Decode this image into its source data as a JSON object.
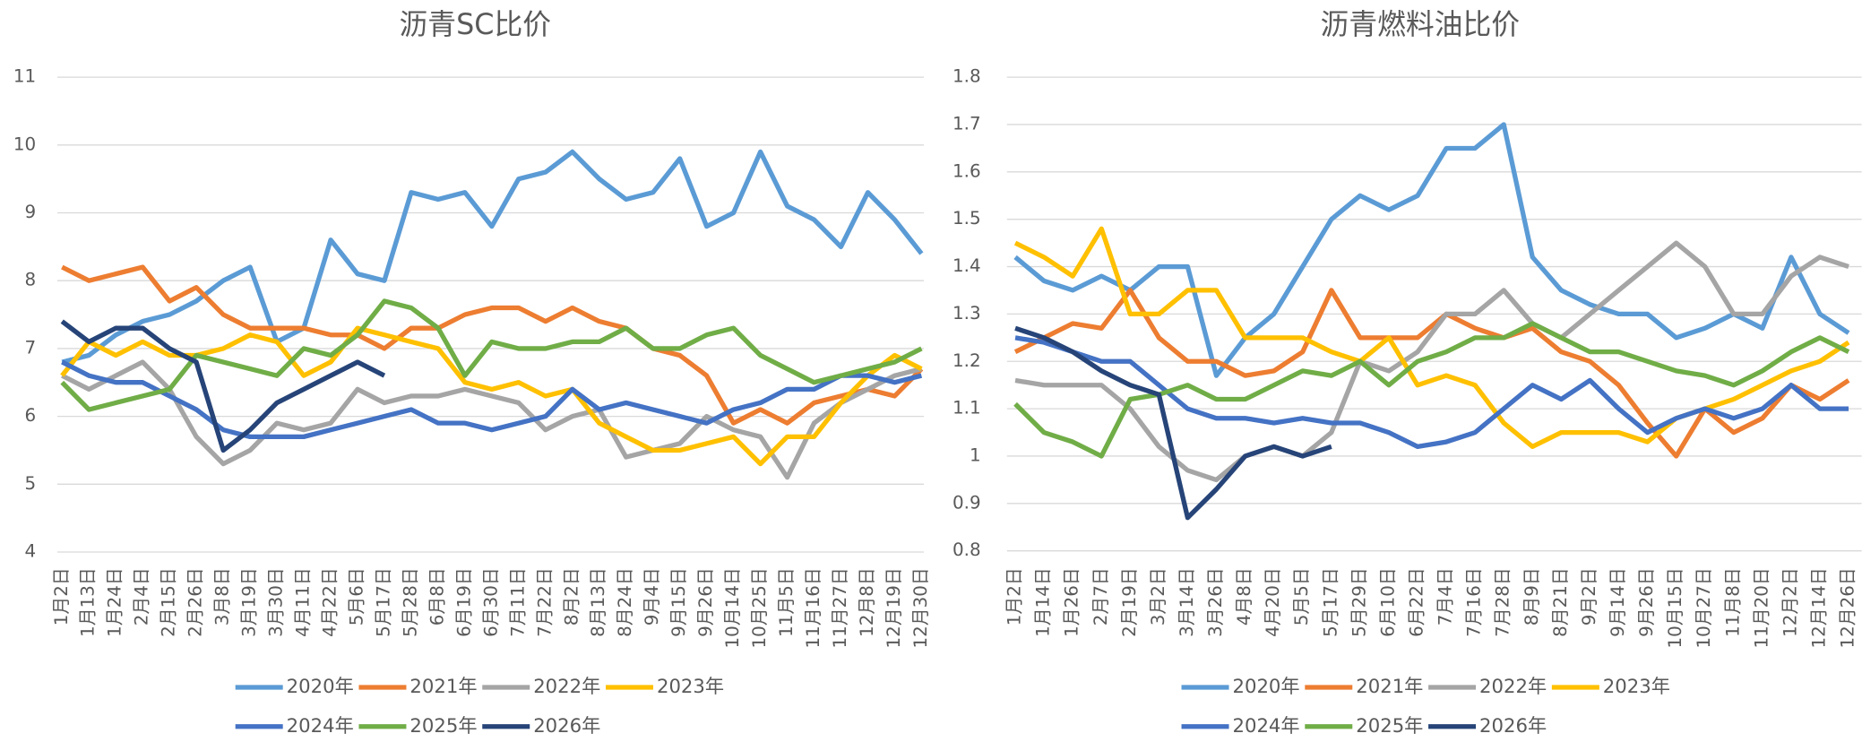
{
  "chart_data": [
    {
      "type": "line",
      "title": "沥青SC比价",
      "categories": [
        "1月2日",
        "1月13日",
        "1月24日",
        "2月4日",
        "2月15日",
        "2月26日",
        "3月8日",
        "3月19日",
        "3月30日",
        "4月11日",
        "4月22日",
        "5月6日",
        "5月17日",
        "5月28日",
        "6月8日",
        "6月19日",
        "6月30日",
        "7月11日",
        "7月22日",
        "8月2日",
        "8月13日",
        "8月24日",
        "9月4日",
        "9月15日",
        "9月26日",
        "10月14日",
        "10月25日",
        "11月5日",
        "11月16日",
        "11月27日",
        "12月8日",
        "12月19日",
        "12月30日"
      ],
      "ylim": [
        4,
        11
      ],
      "yticks": [
        4,
        5,
        6,
        7,
        8,
        9,
        10,
        11
      ],
      "grid": true,
      "series": [
        {
          "name": "2020年",
          "color": "#5b9bd5",
          "values": [
            6.8,
            6.9,
            7.2,
            7.4,
            7.5,
            7.7,
            8.0,
            8.2,
            7.1,
            7.3,
            8.6,
            8.1,
            8.0,
            9.3,
            9.2,
            9.3,
            8.8,
            9.5,
            9.6,
            9.9,
            9.5,
            9.2,
            9.3,
            9.8,
            8.8,
            9.0,
            9.9,
            9.1,
            8.9,
            8.5,
            9.3,
            8.9,
            8.4
          ]
        },
        {
          "name": "2021年",
          "color": "#ed7d31",
          "values": [
            8.2,
            8.0,
            8.1,
            8.2,
            7.7,
            7.9,
            7.5,
            7.3,
            7.3,
            7.3,
            7.2,
            7.2,
            7.0,
            7.3,
            7.3,
            7.5,
            7.6,
            7.6,
            7.4,
            7.6,
            7.4,
            7.3,
            7.0,
            6.9,
            6.6,
            5.9,
            6.1,
            5.9,
            6.2,
            6.3,
            6.4,
            6.3,
            6.7
          ]
        },
        {
          "name": "2022年",
          "color": "#a5a5a5",
          "values": [
            6.6,
            6.4,
            6.6,
            6.8,
            6.4,
            5.7,
            5.3,
            5.5,
            5.9,
            5.8,
            5.9,
            6.4,
            6.2,
            6.3,
            6.3,
            6.4,
            6.3,
            6.2,
            5.8,
            6.0,
            6.1,
            5.4,
            5.5,
            5.6,
            6.0,
            5.8,
            5.7,
            5.1,
            5.9,
            6.2,
            6.4,
            6.6,
            6.7
          ]
        },
        {
          "name": "2023年",
          "color": "#ffc000",
          "values": [
            6.6,
            7.1,
            6.9,
            7.1,
            6.9,
            6.9,
            7.0,
            7.2,
            7.1,
            6.6,
            6.8,
            7.3,
            7.2,
            7.1,
            7.0,
            6.5,
            6.4,
            6.5,
            6.3,
            6.4,
            5.9,
            5.7,
            5.5,
            5.5,
            5.6,
            5.7,
            5.3,
            5.7,
            5.7,
            6.2,
            6.6,
            6.9,
            6.7
          ]
        },
        {
          "name": "2024年",
          "color": "#4472c4",
          "values": [
            6.8,
            6.6,
            6.5,
            6.5,
            6.3,
            6.1,
            5.8,
            5.7,
            5.7,
            5.7,
            5.8,
            5.9,
            6.0,
            6.1,
            5.9,
            5.9,
            5.8,
            5.9,
            6.0,
            6.4,
            6.1,
            6.2,
            6.1,
            6.0,
            5.9,
            6.1,
            6.2,
            6.4,
            6.4,
            6.6,
            6.6,
            6.5,
            6.6
          ]
        },
        {
          "name": "2025年",
          "color": "#70ad47",
          "values": [
            6.5,
            6.1,
            6.2,
            6.3,
            6.4,
            6.9,
            6.8,
            6.7,
            6.6,
            7.0,
            6.9,
            7.2,
            7.7,
            7.6,
            7.3,
            6.6,
            7.1,
            7.0,
            7.0,
            7.1,
            7.1,
            7.3,
            7.0,
            7.0,
            7.2,
            7.3,
            6.9,
            6.7,
            6.5,
            6.6,
            6.7,
            6.8,
            7.0
          ]
        },
        {
          "name": "2026年",
          "color": "#264478",
          "values": [
            7.4,
            7.1,
            7.3,
            7.3,
            7.0,
            6.8,
            5.5,
            5.8,
            6.2,
            6.4,
            6.6,
            6.8,
            6.6,
            null,
            null,
            null,
            null,
            null,
            null,
            null,
            null,
            null,
            null,
            null,
            null,
            null,
            null,
            null,
            null,
            null,
            null,
            null,
            null
          ]
        }
      ]
    },
    {
      "type": "line",
      "title": "沥青燃料油比价",
      "categories": [
        "1月2日",
        "1月14日",
        "1月26日",
        "2月7日",
        "2月19日",
        "3月2日",
        "3月14日",
        "3月26日",
        "4月8日",
        "4月20日",
        "5月5日",
        "5月17日",
        "5月29日",
        "6月10日",
        "6月22日",
        "7月4日",
        "7月16日",
        "7月28日",
        "8月9日",
        "8月21日",
        "9月2日",
        "9月14日",
        "9月26日",
        "10月15日",
        "10月27日",
        "11月8日",
        "11月20日",
        "12月2日",
        "12月14日",
        "12月26日"
      ],
      "ylim": [
        0.8,
        1.8
      ],
      "yticks": [
        0.8,
        0.9,
        1,
        1.1,
        1.2,
        1.3,
        1.4,
        1.5,
        1.6,
        1.7,
        1.8
      ],
      "grid": true,
      "series": [
        {
          "name": "2020年",
          "color": "#5b9bd5",
          "values": [
            1.42,
            1.37,
            1.35,
            1.38,
            1.35,
            1.4,
            1.4,
            1.17,
            1.25,
            1.3,
            1.4,
            1.5,
            1.55,
            1.52,
            1.55,
            1.65,
            1.65,
            1.7,
            1.42,
            1.35,
            1.32,
            1.3,
            1.3,
            1.25,
            1.27,
            1.3,
            1.27,
            1.42,
            1.3,
            1.26
          ]
        },
        {
          "name": "2021年",
          "color": "#ed7d31",
          "values": [
            1.22,
            1.25,
            1.28,
            1.27,
            1.35,
            1.25,
            1.2,
            1.2,
            1.17,
            1.18,
            1.22,
            1.35,
            1.25,
            1.25,
            1.25,
            1.3,
            1.27,
            1.25,
            1.27,
            1.22,
            1.2,
            1.15,
            1.07,
            1.0,
            1.1,
            1.05,
            1.08,
            1.15,
            1.12,
            1.16
          ]
        },
        {
          "name": "2022年",
          "color": "#a5a5a5",
          "values": [
            1.16,
            1.15,
            1.15,
            1.15,
            1.1,
            1.02,
            0.97,
            0.95,
            1.0,
            1.02,
            1.0,
            1.05,
            1.2,
            1.18,
            1.22,
            1.3,
            1.3,
            1.35,
            1.28,
            1.25,
            1.3,
            1.35,
            1.4,
            1.45,
            1.4,
            1.3,
            1.3,
            1.38,
            1.42,
            1.4
          ]
        },
        {
          "name": "2023年",
          "color": "#ffc000",
          "values": [
            1.45,
            1.42,
            1.38,
            1.48,
            1.3,
            1.3,
            1.35,
            1.35,
            1.25,
            1.25,
            1.25,
            1.22,
            1.2,
            1.25,
            1.15,
            1.17,
            1.15,
            1.07,
            1.02,
            1.05,
            1.05,
            1.05,
            1.03,
            1.08,
            1.1,
            1.12,
            1.15,
            1.18,
            1.2,
            1.24
          ]
        },
        {
          "name": "2024年",
          "color": "#4472c4",
          "values": [
            1.25,
            1.24,
            1.22,
            1.2,
            1.2,
            1.15,
            1.1,
            1.08,
            1.08,
            1.07,
            1.08,
            1.07,
            1.07,
            1.05,
            1.02,
            1.03,
            1.05,
            1.1,
            1.15,
            1.12,
            1.16,
            1.1,
            1.05,
            1.08,
            1.1,
            1.08,
            1.1,
            1.15,
            1.1,
            1.1
          ]
        },
        {
          "name": "2025年",
          "color": "#70ad47",
          "values": [
            1.11,
            1.05,
            1.03,
            1.0,
            1.12,
            1.13,
            1.15,
            1.12,
            1.12,
            1.15,
            1.18,
            1.17,
            1.2,
            1.15,
            1.2,
            1.22,
            1.25,
            1.25,
            1.28,
            1.25,
            1.22,
            1.22,
            1.2,
            1.18,
            1.17,
            1.15,
            1.18,
            1.22,
            1.25,
            1.22
          ]
        },
        {
          "name": "2026年",
          "color": "#264478",
          "values": [
            1.27,
            1.25,
            1.22,
            1.18,
            1.15,
            1.13,
            0.87,
            0.93,
            1.0,
            1.02,
            1.0,
            1.02,
            null,
            null,
            null,
            null,
            null,
            null,
            null,
            null,
            null,
            null,
            null,
            null,
            null,
            null,
            null,
            null,
            null,
            null
          ]
        }
      ]
    }
  ]
}
